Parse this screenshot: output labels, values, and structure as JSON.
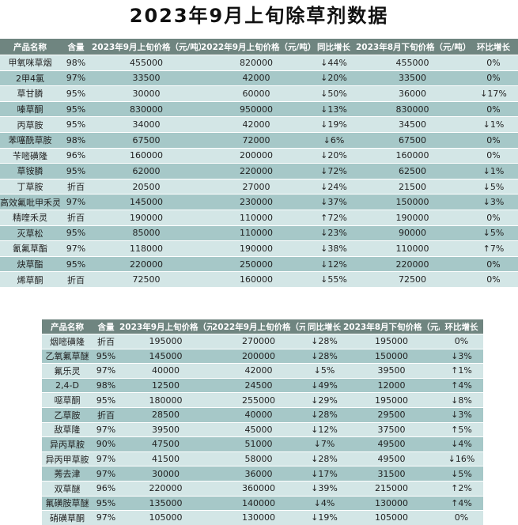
{
  "title": "2023年9月上旬除草剂数据",
  "headers": [
    "产品名称",
    "含量",
    "2023年9月上旬价格（元/吨）",
    "2022年9月上旬价格（元/吨）",
    "同比增长",
    "2023年8月下旬价格（元/吨）",
    "环比增长"
  ],
  "table1": [
    [
      "甲氧咪草烟",
      "98%",
      "455000",
      "820000",
      "↓44%",
      "455000",
      "0%"
    ],
    [
      "2甲4氯",
      "97%",
      "33500",
      "42000",
      "↓20%",
      "33500",
      "0%"
    ],
    [
      "草甘膦",
      "95%",
      "30000",
      "60000",
      "↓50%",
      "36000",
      "↓17%"
    ],
    [
      "嗪草酮",
      "95%",
      "830000",
      "950000",
      "↓13%",
      "830000",
      "0%"
    ],
    [
      "丙草胺",
      "95%",
      "34000",
      "42000",
      "↓19%",
      "34500",
      "↓1%"
    ],
    [
      "苯噻酰草胺",
      "98%",
      "67500",
      "72000",
      "↓6%",
      "67500",
      "0%"
    ],
    [
      "苄嘧磺隆",
      "96%",
      "160000",
      "200000",
      "↓20%",
      "160000",
      "0%"
    ],
    [
      "草铵膦",
      "95%",
      "62000",
      "220000",
      "↓72%",
      "62500",
      "↓1%"
    ],
    [
      "丁草胺",
      "折百",
      "20500",
      "27000",
      "↓24%",
      "21500",
      "↓5%"
    ],
    [
      "高效氟吡甲禾灵",
      "97%",
      "145000",
      "230000",
      "↓37%",
      "150000",
      "↓3%"
    ],
    [
      "精喹禾灵",
      "折百",
      "190000",
      "110000",
      "↑72%",
      "190000",
      "0%"
    ],
    [
      "灭草松",
      "95%",
      "85000",
      "110000",
      "↓23%",
      "90000",
      "↓5%"
    ],
    [
      "氰氟草酯",
      "97%",
      "118000",
      "190000",
      "↓38%",
      "110000",
      "↑7%"
    ],
    [
      "炔草酯",
      "95%",
      "220000",
      "250000",
      "↓12%",
      "220000",
      "0%"
    ],
    [
      "烯草酮",
      "折百",
      "72500",
      "160000",
      "↓55%",
      "72500",
      "0%"
    ]
  ],
  "table2": [
    [
      "烟嘧磺隆",
      "折百",
      "195000",
      "270000",
      "↓28%",
      "195000",
      "0%"
    ],
    [
      "乙氧氟草醚",
      "95%",
      "145000",
      "200000",
      "↓28%",
      "150000",
      "↓3%"
    ],
    [
      "氟乐灵",
      "97%",
      "40000",
      "42000",
      "↓5%",
      "39500",
      "↑1%"
    ],
    [
      "2,4-D",
      "98%",
      "12500",
      "24500",
      "↓49%",
      "12000",
      "↑4%"
    ],
    [
      "噁草酮",
      "95%",
      "180000",
      "255000",
      "↓29%",
      "195000",
      "↓8%"
    ],
    [
      "乙草胺",
      "折百",
      "28500",
      "40000",
      "↓28%",
      "29500",
      "↓3%"
    ],
    [
      "敌草隆",
      "97%",
      "39500",
      "45000",
      "↓12%",
      "37500",
      "↑5%"
    ],
    [
      "异丙草胺",
      "90%",
      "47500",
      "51000",
      "↓7%",
      "49500",
      "↓4%"
    ],
    [
      "异丙甲草胺",
      "97%",
      "41500",
      "58000",
      "↓28%",
      "49500",
      "↓16%"
    ],
    [
      "莠去津",
      "97%",
      "30000",
      "36000",
      "↓17%",
      "31500",
      "↓5%"
    ],
    [
      "双草醚",
      "96%",
      "220000",
      "360000",
      "↓39%",
      "215000",
      "↑2%"
    ],
    [
      "氟磺胺草醚",
      "95%",
      "135000",
      "140000",
      "↓4%",
      "130000",
      "↑4%"
    ],
    [
      "硝磺草酮",
      "97%",
      "105000",
      "130000",
      "↓19%",
      "105000",
      "0%"
    ]
  ]
}
